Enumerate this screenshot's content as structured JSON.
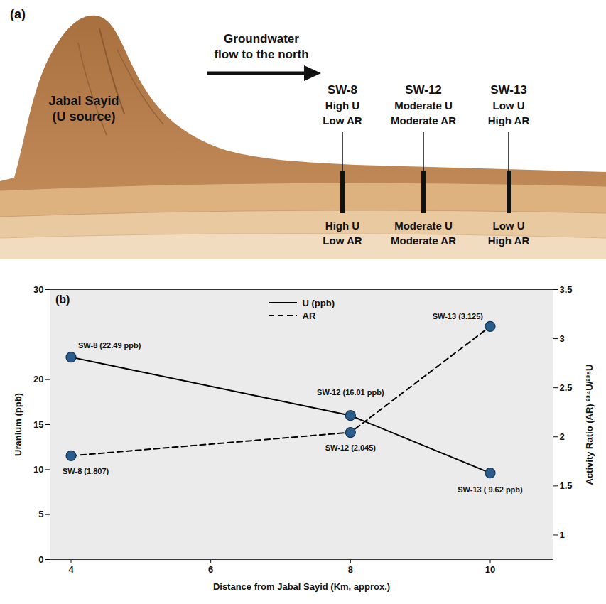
{
  "diagram": {
    "panel": "(a)",
    "source": [
      "Jabal Sayid",
      "(U source)"
    ],
    "flow": [
      "Groundwater",
      "flow to the north"
    ],
    "wells": [
      {
        "name": "SW-8",
        "top": [
          "High U",
          "Low AR"
        ],
        "bottom": [
          "High U",
          "Low AR"
        ]
      },
      {
        "name": "SW-12",
        "top": [
          "Moderate U",
          "Moderate AR"
        ],
        "bottom": [
          "Moderate U",
          "Moderate AR"
        ]
      },
      {
        "name": "SW-13",
        "top": [
          "Low U",
          "High AR"
        ],
        "bottom": [
          "Low U",
          "High AR"
        ]
      }
    ]
  },
  "chart_data": {
    "type": "line",
    "panel": "(b)",
    "x": [
      4,
      8,
      10
    ],
    "xlim": [
      3.7,
      10.9
    ],
    "xticks": [
      4,
      6,
      8,
      10
    ],
    "xlabel": "Distance from Jabal Sayid (Km, approx.)",
    "ylabel": "Uranium (ppb)",
    "ylim": [
      0,
      30
    ],
    "yticks": [
      0,
      5,
      10,
      15,
      20,
      30
    ],
    "y2label": "Activity Ratio (AR) ²³⁴U/²³⁸U",
    "y2lim": [
      0.75,
      3.5
    ],
    "y2ticks": [
      1,
      1.5,
      2,
      2.5,
      3,
      3.5
    ],
    "grid": false,
    "legend": "top",
    "data_labels": true,
    "series": [
      {
        "name": "U (ppb)",
        "color": "#000000",
        "line_style": "solid",
        "marker": "circle",
        "values": [
          22.49,
          16.01,
          9.62
        ],
        "value_labels": [
          "SW-8 (22.49 ppb)",
          "SW-12 (16.01 ppb)",
          "SW-13 ( 9.62 ppb)"
        ]
      },
      {
        "name": "AR",
        "color": "#000000",
        "line_style": "dashed",
        "marker": "circle",
        "axis": "y2",
        "values": [
          1.807,
          2.045,
          3.125
        ],
        "value_labels": [
          "SW-8 (1.807)",
          "SW-12 (2.045)",
          "SW-13 (3.125)"
        ]
      }
    ]
  }
}
